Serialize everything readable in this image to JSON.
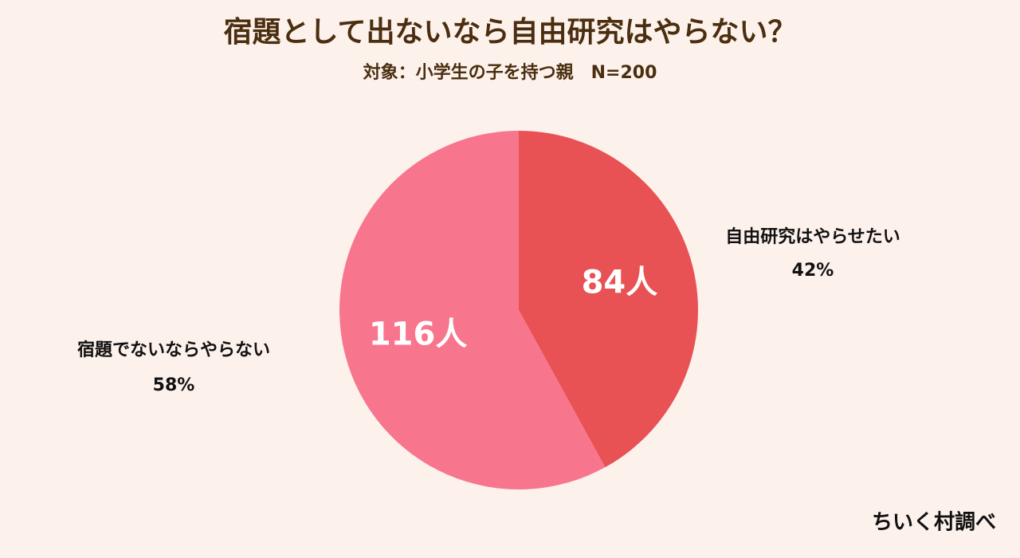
{
  "chart_data": {
    "type": "pie",
    "title": "宿題として出ないなら自由研究はやらない？",
    "subtitle": "対象：小学生の子を持つ親　N=200",
    "categories": [
      "自由研究はやらせたい",
      "宿題でないならやらない"
    ],
    "values": [
      84,
      116
    ],
    "value_labels": [
      "84人",
      "116人"
    ],
    "percentages": [
      42,
      58
    ],
    "percentage_labels": [
      "42%",
      "58%"
    ],
    "colors": [
      "#e85255",
      "#f7768e"
    ],
    "source": "ちいく村調べ"
  }
}
